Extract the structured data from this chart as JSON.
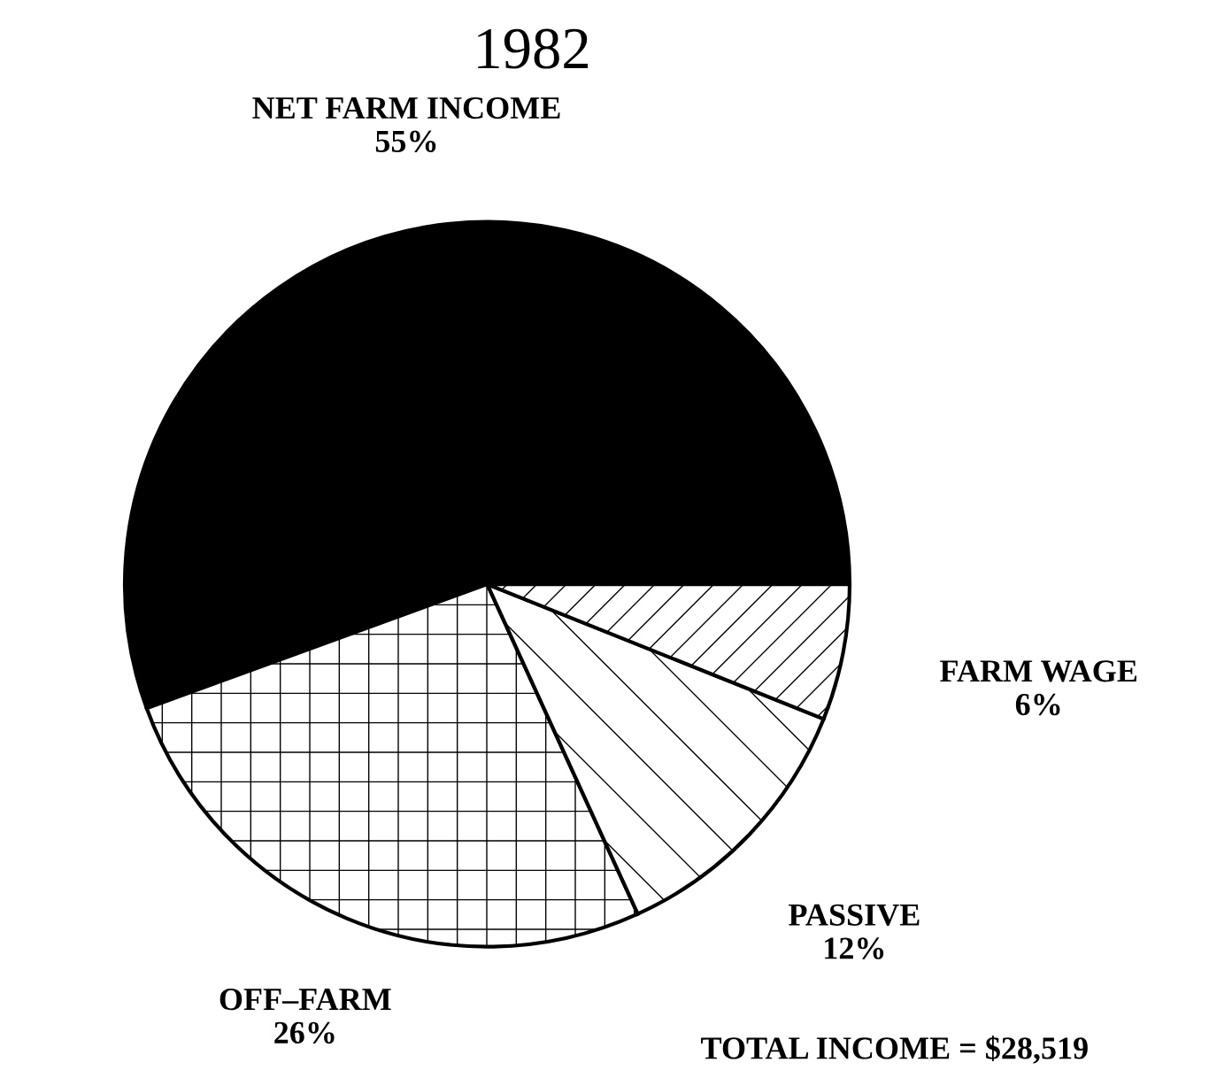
{
  "chart_data": {
    "type": "pie",
    "title": "1982",
    "categories": [
      "NET FARM INCOME",
      "OFF–FARM",
      "PASSIVE",
      "FARM WAGE"
    ],
    "values": [
      55,
      26,
      12,
      6
    ],
    "value_labels": [
      "55%",
      "26%",
      "12%",
      "6%"
    ],
    "colors": [
      "#000000",
      "#ffffff",
      "#ffffff",
      "#ffffff"
    ],
    "annotations": [
      "TOTAL INCOME = $28,519"
    ]
  }
}
